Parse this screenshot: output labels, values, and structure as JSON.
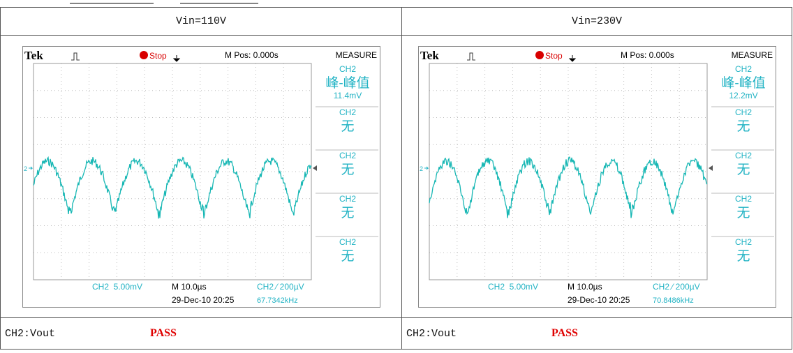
{
  "columns": [
    {
      "header": "Vin=110V",
      "scope": {
        "brand": "Tek",
        "state": "Stop",
        "position": "M Pos: 0.000s",
        "panel_title": "MEASURE",
        "channel_marker": "2",
        "measurements": [
          {
            "channel": "CH2",
            "label": "峰-峰值",
            "value": "11.4mV"
          },
          {
            "channel": "CH2",
            "label": "无"
          },
          {
            "channel": "CH2",
            "label": "无"
          },
          {
            "channel": "CH2",
            "label": "无"
          },
          {
            "channel": "CH2",
            "label": "无"
          }
        ],
        "scale": "CH2  5.00mV",
        "timebase": "M 10.0µs",
        "trigger": "CH2 ⁄ 200µV",
        "datetime": "29-Dec-10 20:25",
        "frequency": "67.7342kHz"
      },
      "footer": {
        "channel": "CH2:Vout",
        "result": "PASS"
      }
    },
    {
      "header": "Vin=230V",
      "scope": {
        "brand": "Tek",
        "state": "Stop",
        "position": "M Pos: 0.000s",
        "panel_title": "MEASURE",
        "channel_marker": "2",
        "measurements": [
          {
            "channel": "CH2",
            "label": "峰-峰值",
            "value": "12.2mV"
          },
          {
            "channel": "CH2",
            "label": "无"
          },
          {
            "channel": "CH2",
            "label": "无"
          },
          {
            "channel": "CH2",
            "label": "无"
          },
          {
            "channel": "CH2",
            "label": "无"
          }
        ],
        "scale": "CH2  5.00mV",
        "timebase": "M 10.0µs",
        "trigger": "CH2 ⁄ 200µV",
        "datetime": "29-Dec-10 20:25",
        "frequency": "70.8486kHz"
      },
      "footer": {
        "channel": "CH2:Vout",
        "result": "PASS"
      }
    }
  ]
}
